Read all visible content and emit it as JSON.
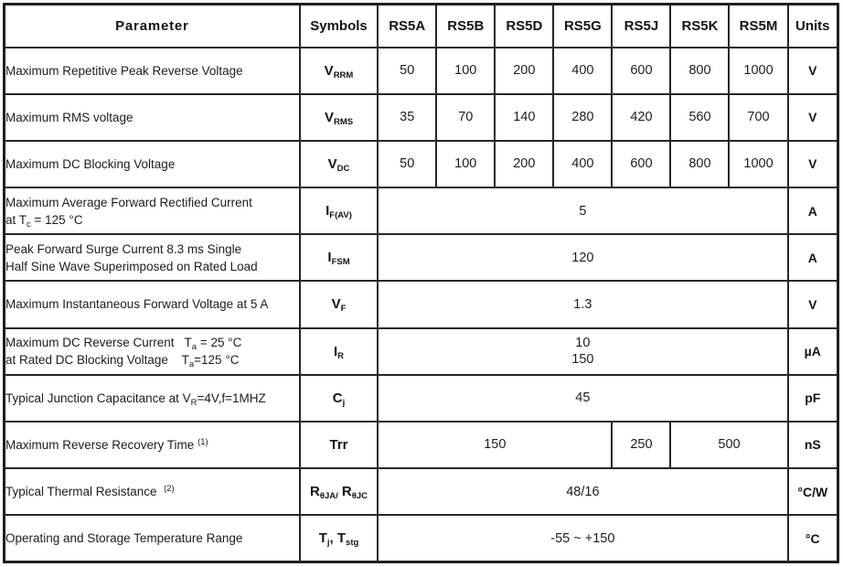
{
  "table": {
    "columns": [
      "Parameter",
      "Symbols",
      "RS5A",
      "RS5B",
      "RS5D",
      "RS5G",
      "RS5J",
      "RS5K",
      "RS5M",
      "Units"
    ],
    "model_count": 7,
    "rows": [
      {
        "name": "vrrm",
        "param": [
          [
            {
              "t": "Maximum Repetitive Peak Reverse Voltage"
            }
          ]
        ],
        "symbol": [
          {
            "t": "V"
          },
          {
            "s": "RRM"
          }
        ],
        "values": [
          {
            "lines": [
              "50"
            ],
            "span": 1
          },
          {
            "lines": [
              "100"
            ],
            "span": 1
          },
          {
            "lines": [
              "200"
            ],
            "span": 1
          },
          {
            "lines": [
              "400"
            ],
            "span": 1
          },
          {
            "lines": [
              "600"
            ],
            "span": 1
          },
          {
            "lines": [
              "800"
            ],
            "span": 1
          },
          {
            "lines": [
              "1000"
            ],
            "span": 1
          }
        ],
        "unit": "V"
      },
      {
        "name": "vrms",
        "param": [
          [
            {
              "t": "Maximum RMS voltage"
            }
          ]
        ],
        "symbol": [
          {
            "t": "V"
          },
          {
            "s": "RMS"
          }
        ],
        "values": [
          {
            "lines": [
              "35"
            ],
            "span": 1
          },
          {
            "lines": [
              "70"
            ],
            "span": 1
          },
          {
            "lines": [
              "140"
            ],
            "span": 1
          },
          {
            "lines": [
              "280"
            ],
            "span": 1
          },
          {
            "lines": [
              "420"
            ],
            "span": 1
          },
          {
            "lines": [
              "560"
            ],
            "span": 1
          },
          {
            "lines": [
              "700"
            ],
            "span": 1
          }
        ],
        "unit": "V"
      },
      {
        "name": "vdc",
        "param": [
          [
            {
              "t": "Maximum DC Blocking Voltage"
            }
          ]
        ],
        "symbol": [
          {
            "t": "V"
          },
          {
            "s": "DC"
          }
        ],
        "values": [
          {
            "lines": [
              "50"
            ],
            "span": 1
          },
          {
            "lines": [
              "100"
            ],
            "span": 1
          },
          {
            "lines": [
              "200"
            ],
            "span": 1
          },
          {
            "lines": [
              "400"
            ],
            "span": 1
          },
          {
            "lines": [
              "600"
            ],
            "span": 1
          },
          {
            "lines": [
              "800"
            ],
            "span": 1
          },
          {
            "lines": [
              "1000"
            ],
            "span": 1
          }
        ],
        "unit": "V"
      },
      {
        "name": "ifav",
        "param": [
          [
            {
              "t": "Maximum Average Forward Rectified Current"
            }
          ],
          [
            {
              "t": "at T"
            },
            {
              "s": "c"
            },
            {
              "t": " = 125 °C"
            }
          ]
        ],
        "symbol": [
          {
            "t": "I"
          },
          {
            "s": "F(AV)"
          }
        ],
        "values": [
          {
            "lines": [
              "5"
            ],
            "span": 7
          }
        ],
        "unit": "A"
      },
      {
        "name": "ifsm",
        "param": [
          [
            {
              "t": "Peak Forward Surge Current 8.3 ms Single"
            }
          ],
          [
            {
              "t": "Half Sine Wave Superimposed on Rated Load"
            }
          ]
        ],
        "symbol": [
          {
            "t": "I"
          },
          {
            "s": "FSM"
          }
        ],
        "values": [
          {
            "lines": [
              "120"
            ],
            "span": 7
          }
        ],
        "unit": "A"
      },
      {
        "name": "vf",
        "param": [
          [
            {
              "t": "Maximum Instantaneous Forward Voltage at 5 A"
            }
          ]
        ],
        "symbol": [
          {
            "t": "V"
          },
          {
            "s": "F"
          }
        ],
        "values": [
          {
            "lines": [
              "1.3"
            ],
            "span": 7
          }
        ],
        "unit": "V"
      },
      {
        "name": "ir",
        "param": [
          [
            {
              "t": "Maximum DC Reverse Current   T"
            },
            {
              "s": "a"
            },
            {
              "t": " = 25 °C"
            }
          ],
          [
            {
              "t": "at Rated DC Blocking Voltage    T"
            },
            {
              "s": "a"
            },
            {
              "t": "=125 °C"
            }
          ]
        ],
        "symbol": [
          {
            "t": "I"
          },
          {
            "s": "R"
          }
        ],
        "values": [
          {
            "lines": [
              "10",
              "150"
            ],
            "span": 7
          }
        ],
        "unit": "µA"
      },
      {
        "name": "cj",
        "param": [
          [
            {
              "t": "Typical Junction Capacitance at V"
            },
            {
              "s": "R"
            },
            {
              "t": "=4V,f=1MHZ"
            }
          ]
        ],
        "symbol": [
          {
            "t": "C"
          },
          {
            "s": "j"
          }
        ],
        "values": [
          {
            "lines": [
              "45"
            ],
            "span": 7
          }
        ],
        "unit": "pF"
      },
      {
        "name": "trr",
        "param": [
          [
            {
              "t": "Maximum Reverse Recovery Time "
            },
            {
              "p": "(1)"
            }
          ]
        ],
        "symbol": [
          {
            "t": "Trr"
          }
        ],
        "values": [
          {
            "lines": [
              "150"
            ],
            "span": 4
          },
          {
            "lines": [
              "250"
            ],
            "span": 1
          },
          {
            "lines": [
              "500"
            ],
            "span": 2
          }
        ],
        "unit": "nS"
      },
      {
        "name": "rth",
        "param": [
          [
            {
              "t": "Typical Thermal Resistance  "
            },
            {
              "p": "(2)"
            }
          ]
        ],
        "symbol": [
          {
            "t": "R"
          },
          {
            "s": "θJA/"
          },
          {
            "t": " R"
          },
          {
            "s": "θJC"
          }
        ],
        "values": [
          {
            "lines": [
              "48/16"
            ],
            "span": 7
          }
        ],
        "unit": "°C/W"
      },
      {
        "name": "tstg",
        "param": [
          [
            {
              "t": "Operating and Storage Temperature Range"
            }
          ]
        ],
        "symbol": [
          {
            "t": "T"
          },
          {
            "s": "j"
          },
          {
            "t": ", T"
          },
          {
            "s": "stg"
          }
        ],
        "values": [
          {
            "lines": [
              "-55 ~ +150"
            ],
            "span": 7
          }
        ],
        "unit": "°C"
      }
    ]
  }
}
